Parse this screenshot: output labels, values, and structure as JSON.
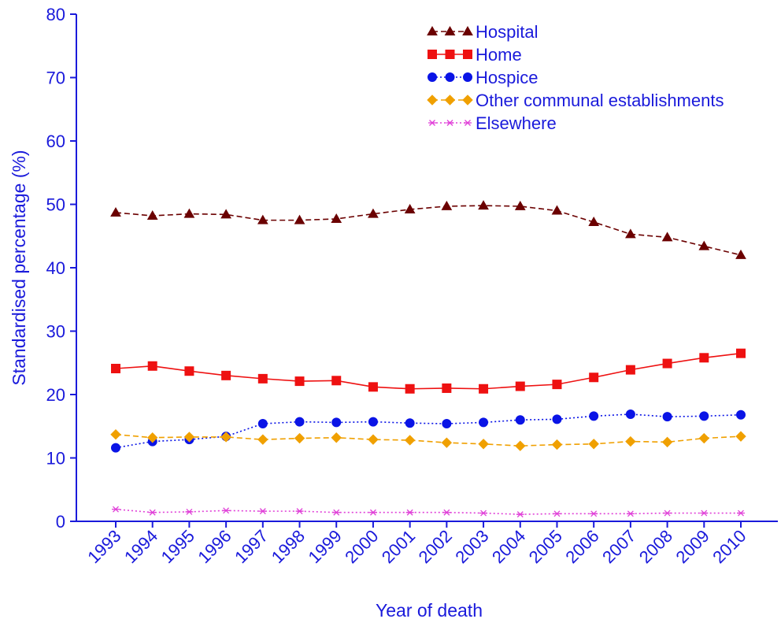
{
  "chart_data": {
    "type": "line",
    "title": "",
    "xlabel": "Year of death",
    "ylabel": "Standardised percentage (%)",
    "ylim": [
      0,
      80
    ],
    "yticks": [
      0,
      10,
      20,
      30,
      40,
      50,
      60,
      70,
      80
    ],
    "categories": [
      "1993",
      "1994",
      "1995",
      "1996",
      "1997",
      "1998",
      "1999",
      "2000",
      "2001",
      "2002",
      "2003",
      "2004",
      "2005",
      "2006",
      "2007",
      "2008",
      "2009",
      "2010"
    ],
    "grid": false,
    "legend_position": "top-right",
    "series": [
      {
        "name": "Hospital",
        "color": "#6b0000",
        "line_style": "dashed",
        "marker": "triangle",
        "values": [
          48.7,
          48.2,
          48.5,
          48.4,
          47.5,
          47.5,
          47.7,
          48.5,
          49.2,
          49.7,
          49.8,
          49.7,
          49.0,
          47.2,
          45.3,
          44.8,
          43.4,
          42.0
        ]
      },
      {
        "name": "Home",
        "color": "#ee1111",
        "line_style": "solid",
        "marker": "square",
        "values": [
          24.1,
          24.5,
          23.7,
          23.0,
          22.5,
          22.1,
          22.2,
          21.2,
          20.9,
          21.0,
          20.9,
          21.3,
          21.6,
          22.7,
          23.9,
          24.9,
          25.8,
          26.5
        ]
      },
      {
        "name": "Hospice",
        "color": "#0a14e6",
        "line_style": "dotted",
        "marker": "circle",
        "values": [
          11.6,
          12.6,
          12.9,
          13.4,
          15.4,
          15.7,
          15.6,
          15.7,
          15.5,
          15.4,
          15.6,
          16.0,
          16.1,
          16.6,
          16.9,
          16.5,
          16.6,
          16.8
        ]
      },
      {
        "name": "Other communal establishments",
        "color": "#f0a000",
        "line_style": "dashed",
        "marker": "diamond",
        "values": [
          13.7,
          13.2,
          13.3,
          13.3,
          12.9,
          13.1,
          13.2,
          12.9,
          12.8,
          12.4,
          12.2,
          11.9,
          12.1,
          12.2,
          12.6,
          12.5,
          13.1,
          13.4
        ]
      },
      {
        "name": "Elsewhere",
        "color": "#e040d8",
        "line_style": "dotted",
        "marker": "star",
        "values": [
          1.9,
          1.4,
          1.5,
          1.7,
          1.6,
          1.6,
          1.4,
          1.4,
          1.4,
          1.4,
          1.3,
          1.1,
          1.2,
          1.2,
          1.2,
          1.3,
          1.3,
          1.3
        ]
      }
    ]
  },
  "colors": {
    "axis": "#1a1adb",
    "text": "#1a1adb"
  }
}
